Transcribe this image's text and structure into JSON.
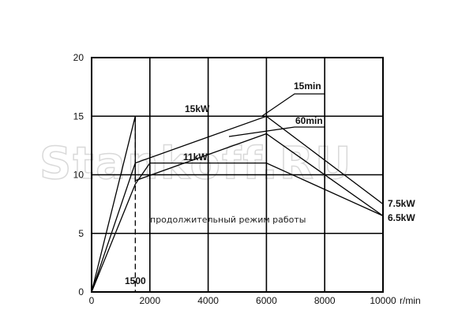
{
  "watermark": "Stankoff.RU",
  "chart_data": {
    "type": "line",
    "xlabel": "r/min",
    "ylabel": "",
    "xlim": [
      0,
      10000
    ],
    "ylim": [
      0,
      20
    ],
    "x_ticks": [
      "0",
      "2000",
      "4000",
      "6000",
      "8000",
      "10000"
    ],
    "y_ticks": [
      "0",
      "5",
      "10",
      "15",
      "20"
    ],
    "grid": true,
    "series": [
      {
        "name": "15min",
        "points": [
          [
            0,
            0
          ],
          [
            1500,
            15
          ],
          [
            1500,
            11
          ],
          [
            6000,
            15
          ],
          [
            10000,
            7.5
          ]
        ]
      },
      {
        "name": "60min",
        "points": [
          [
            0,
            0
          ],
          [
            1500,
            11
          ],
          [
            1500,
            9.5
          ],
          [
            6000,
            13.5
          ],
          [
            10000,
            6.5
          ]
        ]
      },
      {
        "name": "продолжительный режим работы",
        "points": [
          [
            0,
            0
          ],
          [
            1500,
            9.2
          ],
          [
            2000,
            11
          ],
          [
            6000,
            11
          ],
          [
            10000,
            6.5
          ]
        ]
      }
    ],
    "annotations": {
      "label_15kw": "15kW",
      "label_11kw": "11kW",
      "label_15min": "15min",
      "label_60min": "60min",
      "label_75kw": "7.5kW",
      "label_65kw": "6.5kW",
      "label_1500": "1500",
      "continuous_mode": "продолжительный режим работы"
    }
  }
}
